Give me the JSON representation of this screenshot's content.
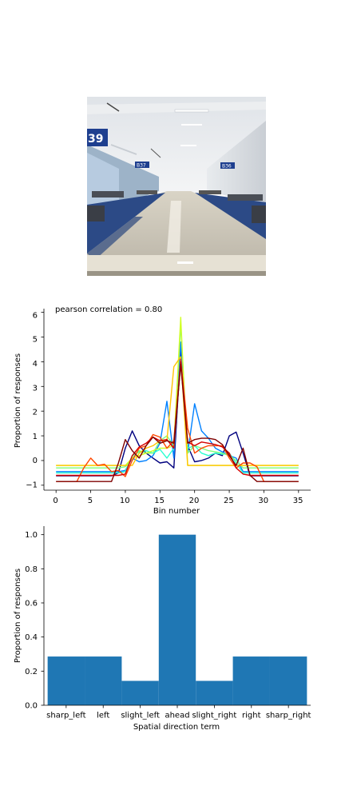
{
  "photo": {
    "description_icon": "airport-terminal-photo",
    "sign_large": "39",
    "sign_left": "B37",
    "sign_right": "B36"
  },
  "line_chart": {
    "annotation": "pearson correlation = 0.80",
    "xlabel": "Bin number",
    "ylabel": "Proportion of responses",
    "x_ticks": [
      "0",
      "5",
      "10",
      "15",
      "20",
      "25",
      "30",
      "35"
    ],
    "y_ticks": [
      "−1",
      "0",
      "1",
      "2",
      "3",
      "4",
      "5",
      "6"
    ]
  },
  "bar_chart": {
    "xlabel": "Spatial direction term",
    "ylabel": "Proportion of responses",
    "y_ticks": [
      "0.0",
      "0.2",
      "0.4",
      "0.6",
      "0.8",
      "1.0"
    ]
  },
  "chart_data": [
    {
      "type": "line",
      "xlabel": "Bin number",
      "ylabel": "Proportion of responses",
      "xlim": [
        -1.75,
        36.75
      ],
      "ylim": [
        -1.2,
        6.15
      ],
      "x": [
        0,
        1,
        2,
        3,
        4,
        5,
        6,
        7,
        8,
        9,
        10,
        11,
        12,
        13,
        14,
        15,
        16,
        17,
        18,
        19,
        20,
        21,
        22,
        23,
        24,
        25,
        26,
        27,
        28,
        29,
        30,
        31,
        32,
        33,
        34,
        35
      ],
      "series": [
        {
          "color": "#00007f",
          "values": [
            -0.62,
            -0.62,
            -0.62,
            -0.62,
            -0.62,
            -0.62,
            -0.62,
            -0.62,
            -0.62,
            -0.5,
            0.5,
            1.2,
            0.6,
            0.3,
            0.1,
            -0.1,
            -0.05,
            -0.3,
            4.5,
            0.6,
            -0.05,
            0.0,
            0.1,
            0.3,
            0.2,
            1.0,
            1.15,
            0.3,
            -0.62,
            -0.62,
            -0.62,
            -0.62,
            -0.62,
            -0.62,
            -0.62,
            -0.62
          ]
        },
        {
          "color": "#0080ff",
          "values": [
            -0.45,
            -0.45,
            -0.45,
            -0.45,
            -0.45,
            -0.45,
            -0.45,
            -0.45,
            -0.45,
            -0.45,
            -0.4,
            0.1,
            -0.05,
            0.0,
            0.2,
            0.7,
            2.4,
            0.1,
            4.8,
            0.3,
            2.3,
            1.2,
            0.9,
            0.5,
            0.35,
            0.2,
            0.1,
            -0.45,
            -0.45,
            -0.45,
            -0.45,
            -0.45,
            -0.45,
            -0.45,
            -0.45,
            -0.45
          ]
        },
        {
          "color": "#26ffd1",
          "values": [
            -0.5,
            -0.5,
            -0.5,
            -0.5,
            -0.5,
            -0.5,
            -0.5,
            -0.5,
            -0.5,
            -0.5,
            -0.45,
            0.2,
            0.35,
            0.4,
            0.3,
            0.45,
            0.1,
            0.5,
            4.0,
            0.5,
            0.6,
            0.3,
            0.2,
            0.3,
            0.25,
            0.3,
            -0.1,
            -0.5,
            -0.5,
            -0.5,
            -0.5,
            -0.5,
            -0.5,
            -0.5,
            -0.5,
            -0.5
          ]
        },
        {
          "color": "#7dff7a",
          "values": [
            -0.3,
            -0.3,
            -0.3,
            -0.3,
            -0.3,
            -0.3,
            -0.3,
            -0.3,
            -0.3,
            -0.3,
            -0.25,
            0.1,
            0.4,
            0.3,
            0.3,
            0.8,
            1.0,
            0.6,
            5.5,
            0.3,
            0.6,
            0.5,
            0.4,
            0.35,
            0.3,
            0.2,
            0.0,
            -0.3,
            -0.3,
            -0.3,
            -0.3,
            -0.3,
            -0.3,
            -0.3,
            -0.3,
            -0.3
          ]
        },
        {
          "color": "#d1ff26",
          "values": [
            -0.2,
            -0.2,
            -0.2,
            -0.2,
            -0.2,
            -0.2,
            -0.2,
            -0.2,
            -0.2,
            -0.2,
            -0.2,
            0.1,
            0.2,
            0.3,
            0.4,
            0.5,
            0.5,
            0.6,
            5.8,
            -0.2,
            -0.2,
            -0.2,
            -0.2,
            -0.2,
            -0.2,
            -0.2,
            -0.2,
            -0.2,
            -0.2,
            -0.2,
            -0.2,
            -0.2,
            -0.2,
            -0.2,
            -0.2,
            -0.2
          ]
        },
        {
          "color": "#ffc400",
          "values": [
            -0.2,
            -0.2,
            -0.2,
            -0.2,
            -0.2,
            -0.2,
            -0.2,
            -0.2,
            -0.2,
            -0.2,
            -0.2,
            -0.2,
            0.3,
            0.5,
            0.6,
            0.8,
            0.8,
            3.8,
            4.2,
            -0.2,
            -0.2,
            -0.2,
            -0.2,
            -0.2,
            -0.2,
            -0.2,
            -0.2,
            -0.2,
            -0.2,
            -0.2,
            -0.2,
            -0.2,
            -0.2,
            -0.2,
            -0.2,
            -0.2
          ]
        },
        {
          "color": "#ff4800",
          "values": [
            -0.85,
            -0.85,
            -0.85,
            -0.85,
            -0.3,
            0.1,
            -0.2,
            -0.15,
            -0.45,
            -0.4,
            -0.65,
            0.0,
            0.5,
            0.6,
            1.05,
            0.95,
            0.5,
            0.8,
            4.1,
            1.3,
            0.3,
            0.5,
            0.6,
            0.6,
            0.6,
            0.1,
            -0.3,
            -0.1,
            -0.1,
            -0.25,
            -0.85,
            -0.85,
            -0.85,
            -0.85,
            -0.85,
            -0.85
          ]
        },
        {
          "color": "#d40000",
          "values": [
            -0.6,
            -0.6,
            -0.6,
            -0.6,
            -0.6,
            -0.6,
            -0.6,
            -0.6,
            -0.6,
            -0.6,
            -0.55,
            0.2,
            0.55,
            0.7,
            0.95,
            0.8,
            0.85,
            0.5,
            4.0,
            0.75,
            0.6,
            0.75,
            0.7,
            0.65,
            0.55,
            0.3,
            -0.3,
            -0.55,
            -0.6,
            -0.6,
            -0.6,
            -0.6,
            -0.6,
            -0.6,
            -0.6,
            -0.6
          ]
        },
        {
          "color": "#7f0000",
          "values": [
            -0.85,
            -0.85,
            -0.85,
            -0.85,
            -0.85,
            -0.85,
            -0.85,
            -0.85,
            -0.85,
            -0.1,
            0.85,
            0.4,
            0.1,
            0.6,
            0.95,
            0.7,
            0.8,
            0.7,
            3.9,
            0.7,
            0.85,
            0.9,
            0.9,
            0.85,
            0.65,
            0.2,
            -0.2,
            0.5,
            -0.6,
            -0.85,
            -0.85,
            -0.85,
            -0.85,
            -0.85,
            -0.85,
            -0.85
          ]
        }
      ]
    },
    {
      "type": "bar",
      "xlabel": "Spatial direction term",
      "ylabel": "Proportion of responses",
      "categories": [
        "sharp_left",
        "left",
        "slight_left",
        "ahead",
        "slight_right",
        "right",
        "sharp_right"
      ],
      "values": [
        0.2857,
        0.2857,
        0.1429,
        1.0,
        0.1429,
        0.2857,
        0.2857
      ],
      "ylim": [
        0,
        1.05
      ],
      "color": "#1f77b4",
      "grid": false
    }
  ]
}
